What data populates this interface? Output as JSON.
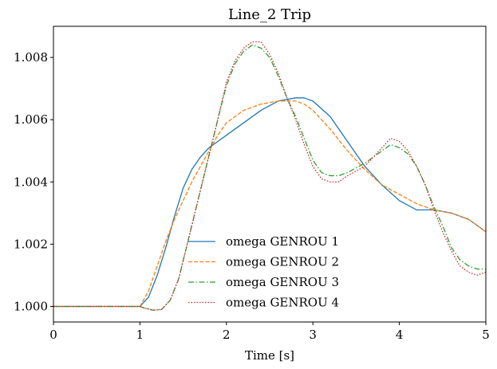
{
  "chart_data": {
    "type": "line",
    "title": "Line_2 Trip",
    "xlabel": "Time [s]",
    "ylabel": "",
    "xlim": [
      0,
      5
    ],
    "ylim": [
      0.9995,
      1.009
    ],
    "xticks": [
      0,
      1,
      2,
      3,
      4,
      5
    ],
    "xtick_labels": [
      "0",
      "1",
      "2",
      "3",
      "4",
      "5"
    ],
    "yticks": [
      1.0,
      1.002,
      1.004,
      1.006,
      1.008
    ],
    "ytick_labels": [
      "1.000",
      "1.002",
      "1.004",
      "1.006",
      "1.008"
    ],
    "grid": false,
    "legend_position": "lower-center",
    "series": [
      {
        "name": "omega GENROU 1",
        "color": "#1f77b4",
        "dash": "solid",
        "points": [
          [
            0,
            1.0
          ],
          [
            1.0,
            1.0
          ],
          [
            1.1,
            1.0003
          ],
          [
            1.2,
            1.001
          ],
          [
            1.3,
            1.0019
          ],
          [
            1.4,
            1.0029
          ],
          [
            1.5,
            1.0038
          ],
          [
            1.6,
            1.0044
          ],
          [
            1.7,
            1.0048
          ],
          [
            1.8,
            1.0051
          ],
          [
            1.9,
            1.0053
          ],
          [
            2.0,
            1.0055
          ],
          [
            2.2,
            1.0059
          ],
          [
            2.4,
            1.0063
          ],
          [
            2.6,
            1.0066
          ],
          [
            2.8,
            1.0067
          ],
          [
            2.9,
            1.0067
          ],
          [
            3.0,
            1.0066
          ],
          [
            3.2,
            1.0061
          ],
          [
            3.4,
            1.0053
          ],
          [
            3.6,
            1.0045
          ],
          [
            3.8,
            1.0039
          ],
          [
            4.0,
            1.0034
          ],
          [
            4.2,
            1.0031
          ],
          [
            4.4,
            1.0031
          ],
          [
            4.6,
            1.003
          ],
          [
            4.8,
            1.0028
          ],
          [
            5.0,
            1.0024
          ]
        ]
      },
      {
        "name": "omega GENROU 2",
        "color": "#ff7f0e",
        "dash": "dashed",
        "points": [
          [
            0,
            1.0
          ],
          [
            1.0,
            1.0
          ],
          [
            1.1,
            1.0005
          ],
          [
            1.2,
            1.0013
          ],
          [
            1.3,
            1.0021
          ],
          [
            1.4,
            1.0028
          ],
          [
            1.5,
            1.0034
          ],
          [
            1.6,
            1.004
          ],
          [
            1.7,
            1.0045
          ],
          [
            1.8,
            1.005
          ],
          [
            1.9,
            1.0055
          ],
          [
            2.0,
            1.0059
          ],
          [
            2.2,
            1.0063
          ],
          [
            2.4,
            1.0065
          ],
          [
            2.6,
            1.0066
          ],
          [
            2.8,
            1.0066
          ],
          [
            2.9,
            1.0065
          ],
          [
            3.0,
            1.0063
          ],
          [
            3.2,
            1.0057
          ],
          [
            3.4,
            1.005
          ],
          [
            3.6,
            1.0044
          ],
          [
            3.8,
            1.0039
          ],
          [
            4.0,
            1.0036
          ],
          [
            4.2,
            1.0033
          ],
          [
            4.4,
            1.0031
          ],
          [
            4.6,
            1.003
          ],
          [
            4.8,
            1.0028
          ],
          [
            5.0,
            1.0024
          ]
        ]
      },
      {
        "name": "omega GENROU 3",
        "color": "#2ca02c",
        "dash": "dashdot",
        "points": [
          [
            0,
            1.0
          ],
          [
            1.0,
            1.0
          ],
          [
            1.05,
            0.99995
          ],
          [
            1.15,
            0.99988
          ],
          [
            1.25,
            0.9999
          ],
          [
            1.35,
            1.0002
          ],
          [
            1.45,
            1.0009
          ],
          [
            1.6,
            1.0026
          ],
          [
            1.75,
            1.0043
          ],
          [
            1.9,
            1.006
          ],
          [
            2.0,
            1.0071
          ],
          [
            2.1,
            1.0078
          ],
          [
            2.2,
            1.0082
          ],
          [
            2.3,
            1.0084
          ],
          [
            2.4,
            1.0083
          ],
          [
            2.5,
            1.008
          ],
          [
            2.6,
            1.0074
          ],
          [
            2.7,
            1.0067
          ],
          [
            2.8,
            1.0061
          ],
          [
            2.9,
            1.0054
          ],
          [
            3.0,
            1.0047
          ],
          [
            3.1,
            1.0043
          ],
          [
            3.2,
            1.0042
          ],
          [
            3.3,
            1.0042
          ],
          [
            3.4,
            1.0043
          ],
          [
            3.6,
            1.0046
          ],
          [
            3.8,
            1.005
          ],
          [
            3.9,
            1.0052
          ],
          [
            4.0,
            1.0051
          ],
          [
            4.1,
            1.0049
          ],
          [
            4.2,
            1.0045
          ],
          [
            4.3,
            1.0039
          ],
          [
            4.4,
            1.0032
          ],
          [
            4.5,
            1.0026
          ],
          [
            4.6,
            1.0019
          ],
          [
            4.7,
            1.0015
          ],
          [
            4.8,
            1.0013
          ],
          [
            4.9,
            1.0012
          ],
          [
            5.0,
            1.0012
          ]
        ]
      },
      {
        "name": "omega GENROU 4",
        "color": "#d62728",
        "dash": "dotted",
        "points": [
          [
            0,
            1.0
          ],
          [
            1.0,
            1.0
          ],
          [
            1.05,
            0.99995
          ],
          [
            1.15,
            0.99988
          ],
          [
            1.25,
            0.9999
          ],
          [
            1.35,
            1.0002
          ],
          [
            1.45,
            1.0009
          ],
          [
            1.6,
            1.0026
          ],
          [
            1.75,
            1.0043
          ],
          [
            1.9,
            1.006
          ],
          [
            2.0,
            1.0072
          ],
          [
            2.1,
            1.0079
          ],
          [
            2.2,
            1.0083
          ],
          [
            2.3,
            1.0085
          ],
          [
            2.4,
            1.0085
          ],
          [
            2.5,
            1.0081
          ],
          [
            2.6,
            1.0075
          ],
          [
            2.7,
            1.0067
          ],
          [
            2.8,
            1.006
          ],
          [
            2.9,
            1.0052
          ],
          [
            3.0,
            1.0045
          ],
          [
            3.1,
            1.0041
          ],
          [
            3.2,
            1.004
          ],
          [
            3.3,
            1.004
          ],
          [
            3.4,
            1.0042
          ],
          [
            3.6,
            1.0045
          ],
          [
            3.8,
            1.0051
          ],
          [
            3.9,
            1.0054
          ],
          [
            4.0,
            1.0053
          ],
          [
            4.1,
            1.005
          ],
          [
            4.2,
            1.0045
          ],
          [
            4.3,
            1.0039
          ],
          [
            4.4,
            1.0031
          ],
          [
            4.5,
            1.0024
          ],
          [
            4.6,
            1.0018
          ],
          [
            4.7,
            1.0013
          ],
          [
            4.8,
            1.0011
          ],
          [
            4.9,
            1.001
          ],
          [
            5.0,
            1.0011
          ]
        ]
      }
    ]
  }
}
